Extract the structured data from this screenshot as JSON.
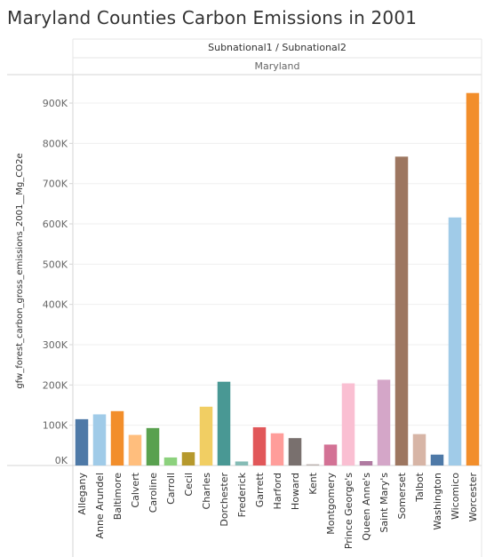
{
  "title": "Maryland Counties Carbon Emissions in 2001",
  "header": {
    "column_field": "Subnational1 / Subnational2",
    "column_value": "Maryland"
  },
  "chart_data": {
    "type": "bar",
    "ylabel": "gfw_forest_carbon_gross_emissions_2001__Mg_CO2e",
    "xlabel": "",
    "ylim": [
      0,
      960000
    ],
    "yticks": [
      0,
      100000,
      200000,
      300000,
      400000,
      500000,
      600000,
      700000,
      800000,
      900000
    ],
    "ytick_labels": [
      "0K",
      "100K",
      "200K",
      "300K",
      "400K",
      "500K",
      "600K",
      "700K",
      "800K",
      "900K"
    ],
    "grid": true,
    "categories": [
      "Allegany",
      "Anne Arundel",
      "Baltimore",
      "Calvert",
      "Caroline",
      "Carroll",
      "Cecil",
      "Charles",
      "Dorchester",
      "Frederick",
      "Garrett",
      "Harford",
      "Howard",
      "Kent",
      "Montgomery",
      "Prince George's",
      "Queen Anne's",
      "Saint Mary's",
      "Somerset",
      "Talbot",
      "Washington",
      "Wicomico",
      "Worcester"
    ],
    "values": [
      115000,
      127000,
      135000,
      76000,
      93000,
      20000,
      33000,
      146000,
      208000,
      10000,
      95000,
      80000,
      68000,
      3000,
      52000,
      204000,
      11000,
      213000,
      767000,
      78000,
      27000,
      616000,
      925000
    ],
    "colors": [
      "#4e79a7",
      "#a0cbe8",
      "#f28e2b",
      "#ffbe7d",
      "#59a14f",
      "#8cd17d",
      "#b6992d",
      "#f1ce63",
      "#499894",
      "#86bcb6",
      "#e15759",
      "#ff9d9a",
      "#79706e",
      "#bab0ac",
      "#d37295",
      "#fabfd2",
      "#b07aa1",
      "#d4a6c8",
      "#9d7660",
      "#d7b5a6",
      "#4e79a7",
      "#a0cbe8",
      "#f28e2b"
    ]
  }
}
